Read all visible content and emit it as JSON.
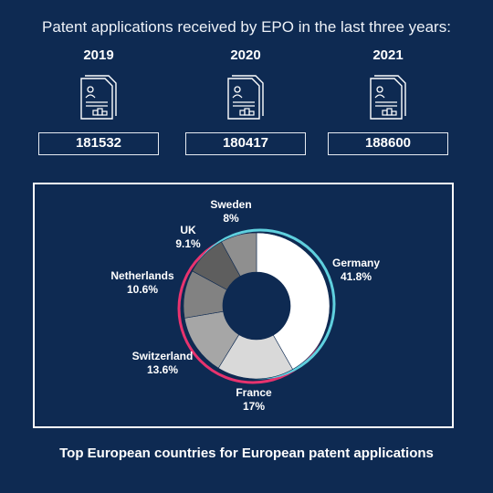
{
  "header": {
    "title": "Patent applications received by EPO in the last three years:"
  },
  "years": [
    {
      "year": "2019",
      "count": "181532",
      "icon": "document-icon"
    },
    {
      "year": "2020",
      "count": "180417",
      "icon": "document-icon"
    },
    {
      "year": "2021",
      "count": "188600",
      "icon": "document-icon"
    }
  ],
  "colors": {
    "background": "#0e2a52",
    "frame": "#ffffff",
    "glitch_pink": "#e8336e",
    "glitch_cyan": "#5fd0de"
  },
  "chart_data": {
    "type": "pie",
    "title": "Top European countries for European patent applications",
    "donut": true,
    "slices": [
      {
        "label": "Germany",
        "value": 41.8,
        "value_label": "41.8%",
        "color": "#ffffff"
      },
      {
        "label": "France",
        "value": 17,
        "value_label": "17%",
        "color": "#d9d9d9"
      },
      {
        "label": "Switzerland",
        "value": 13.6,
        "value_label": "13.6%",
        "color": "#a6a6a6"
      },
      {
        "label": "Netherlands",
        "value": 10.6,
        "value_label": "10.6%",
        "color": "#828282"
      },
      {
        "label": "UK",
        "value": 9.1,
        "value_label": "9.1%",
        "color": "#5e5e5e"
      },
      {
        "label": "Sweden",
        "value": 8,
        "value_label": "8%",
        "color": "#8f8f8f"
      }
    ]
  }
}
